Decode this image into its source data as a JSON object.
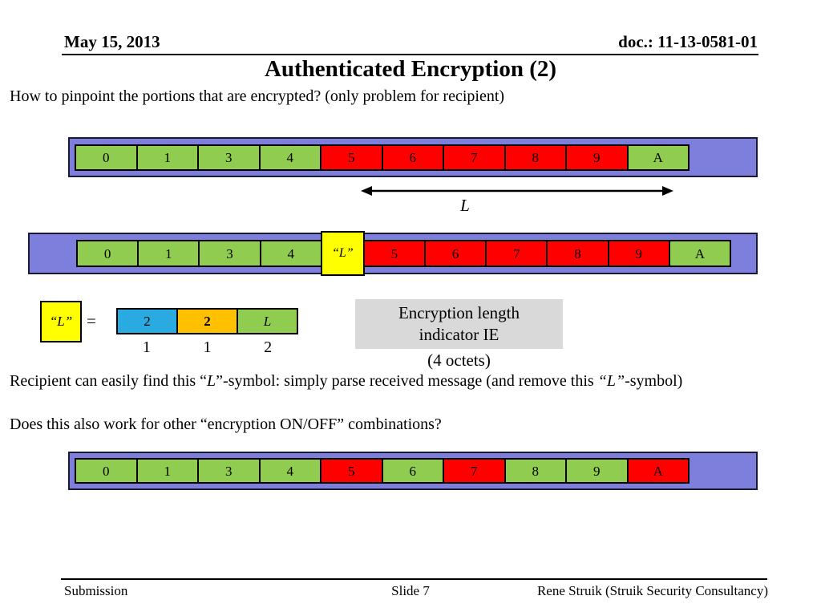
{
  "header": {
    "date": "May 15, 2013",
    "doc": "doc.: 11-13-0581-01"
  },
  "title": "Authenticated Encryption (2)",
  "intro": "How to pinpoint the portions that are encrypted? (only problem for recipient)",
  "colors": {
    "bar_background": "#7E7EDC",
    "plain_cell": "#8FCC4F",
    "encrypted_cell": "#FF0000",
    "l_symbol": "#FFFF00",
    "length_field_1": "#29ABE2",
    "length_field_2": "#FFC000",
    "ie_box": "#D9D9D9"
  },
  "bars": {
    "bar1": {
      "cells": [
        {
          "label": "0",
          "color": "green"
        },
        {
          "label": "1",
          "color": "green"
        },
        {
          "label": "3",
          "color": "green"
        },
        {
          "label": "4",
          "color": "green"
        },
        {
          "label": "5",
          "color": "red"
        },
        {
          "label": "6",
          "color": "red"
        },
        {
          "label": "7",
          "color": "red"
        },
        {
          "label": "8",
          "color": "red"
        },
        {
          "label": "9",
          "color": "red"
        },
        {
          "label": "A",
          "color": "green"
        }
      ]
    },
    "bar2": {
      "cells": [
        {
          "label": "0",
          "color": "green"
        },
        {
          "label": "1",
          "color": "green"
        },
        {
          "label": "3",
          "color": "green"
        },
        {
          "label": "4",
          "color": "green"
        },
        {
          "label": "“L”",
          "color": "yellow",
          "tall": true,
          "italic": true
        },
        {
          "label": "5",
          "color": "red"
        },
        {
          "label": "6",
          "color": "red"
        },
        {
          "label": "7",
          "color": "red"
        },
        {
          "label": "8",
          "color": "red"
        },
        {
          "label": "9",
          "color": "red"
        },
        {
          "label": "A",
          "color": "green"
        }
      ]
    },
    "bar3": {
      "cells": [
        {
          "label": "0",
          "color": "green"
        },
        {
          "label": "1",
          "color": "green"
        },
        {
          "label": "3",
          "color": "green"
        },
        {
          "label": "4",
          "color": "green"
        },
        {
          "label": "5",
          "color": "red"
        },
        {
          "label": "6",
          "color": "green"
        },
        {
          "label": "7",
          "color": "red"
        },
        {
          "label": "8",
          "color": "green"
        },
        {
          "label": "9",
          "color": "green"
        },
        {
          "label": "A",
          "color": "red"
        }
      ]
    }
  },
  "arrow": {
    "label": "L"
  },
  "l_definition": {
    "symbol": "“L”",
    "equals": "=",
    "cells": [
      {
        "label": "2",
        "color": "blue"
      },
      {
        "label": "2",
        "color": "orange",
        "bold": true
      },
      {
        "label": "L",
        "color": "green",
        "italic": true
      }
    ],
    "octet_sizes": [
      "1",
      "1",
      "2"
    ]
  },
  "ie_box": {
    "line1": "Encryption length",
    "line2": "indicator IE",
    "note": "(4 octets)"
  },
  "recipient_segments": [
    {
      "t": "Recipient can easily find this “"
    },
    {
      "t": "L",
      "i": true
    },
    {
      "t": "”-symbol: simply parse received message (and remove this "
    },
    {
      "t": "“L”",
      "i": true
    },
    {
      "t": "-symbol)"
    }
  ],
  "question": "Does this also work for other “encryption ON/OFF” combinations?",
  "footer": {
    "left": "Submission",
    "center": "Slide 7",
    "right": "Rene Struik (Struik Security Consultancy)"
  }
}
